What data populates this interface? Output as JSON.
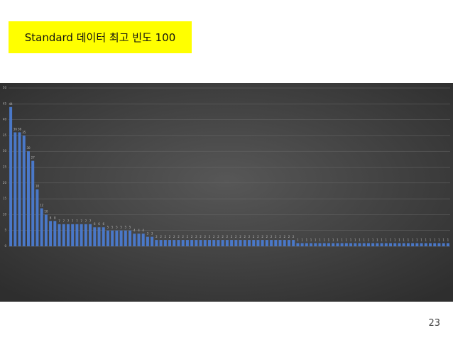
{
  "title": "Standard 데이터 최고 빈도 100",
  "page_number": "23",
  "chart_data": {
    "type": "bar",
    "color": "#4a78c8",
    "grid": true,
    "ylim": [
      0,
      50
    ],
    "yticks": [
      0,
      5,
      10,
      15,
      20,
      25,
      30,
      35,
      40,
      45,
      50
    ],
    "values": [
      44,
      36,
      36,
      35,
      30,
      27,
      18,
      12,
      10,
      8,
      8,
      7,
      7,
      7,
      7,
      7,
      7,
      7,
      7,
      6,
      6,
      6,
      5,
      5,
      5,
      5,
      5,
      5,
      4,
      4,
      4,
      3,
      3,
      2,
      2,
      2,
      2,
      2,
      2,
      2,
      2,
      2,
      2,
      2,
      2,
      2,
      2,
      2,
      2,
      2,
      2,
      2,
      2,
      2,
      2,
      2,
      2,
      2,
      2,
      2,
      2,
      2,
      2,
      2,
      2,
      1,
      1,
      1,
      1,
      1,
      1,
      1,
      1,
      1,
      1,
      1,
      1,
      1,
      1,
      1,
      1,
      1,
      1,
      1,
      1,
      1,
      1,
      1,
      1,
      1,
      1,
      1,
      1,
      1,
      1,
      1,
      1,
      1,
      1,
      1
    ]
  }
}
